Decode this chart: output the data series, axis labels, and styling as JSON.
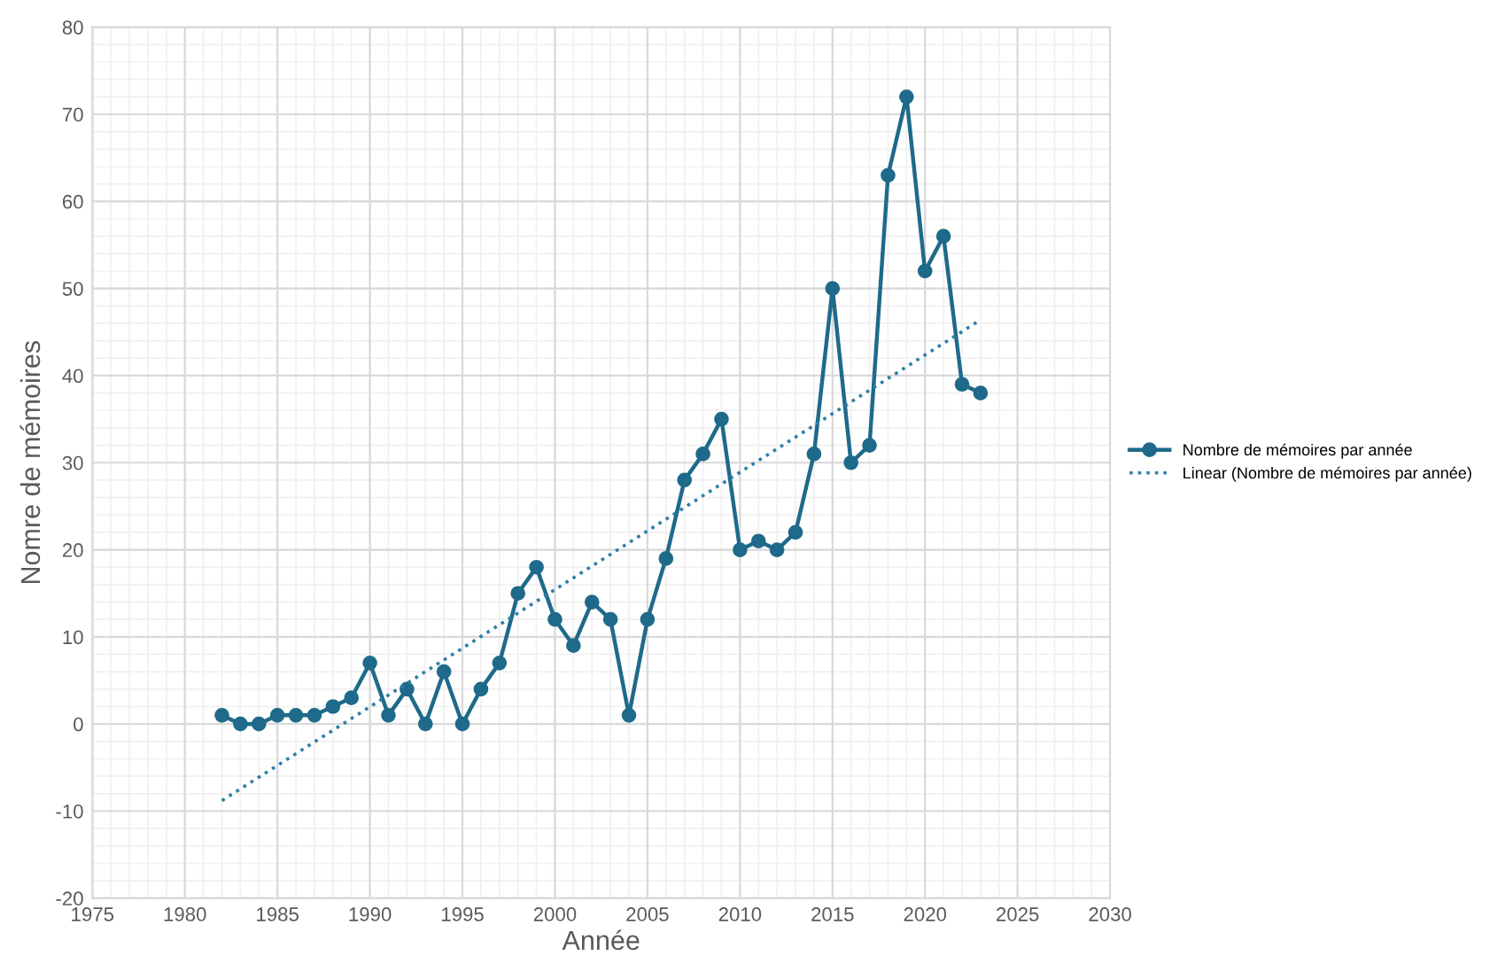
{
  "chart_data": {
    "type": "line",
    "xlabel": "Année",
    "ylabel": "Nomre de mémoires",
    "xlim": [
      1975,
      2030
    ],
    "xticks": [
      1975,
      1980,
      1985,
      1990,
      1995,
      2000,
      2005,
      2010,
      2015,
      2020,
      2025,
      2030
    ],
    "ylim": [
      -20,
      80
    ],
    "yticks": [
      -20,
      -10,
      0,
      10,
      20,
      30,
      40,
      50,
      60,
      70,
      80
    ],
    "grid": true,
    "legend": "right",
    "series": [
      {
        "name": "Nombre de mémoires par année",
        "color": "#1f6a8a",
        "marker": "circle",
        "line_style": "solid",
        "x": [
          1982,
          1983,
          1984,
          1985,
          1986,
          1987,
          1988,
          1989,
          1990,
          1991,
          1992,
          1993,
          1994,
          1995,
          1996,
          1997,
          1998,
          1999,
          2000,
          2001,
          2002,
          2003,
          2004,
          2005,
          2006,
          2007,
          2008,
          2009,
          2010,
          2011,
          2012,
          2013,
          2014,
          2015,
          2016,
          2017,
          2018,
          2019,
          2020,
          2021,
          2022,
          2023
        ],
        "values": [
          1,
          0,
          0,
          1,
          1,
          1,
          2,
          3,
          7,
          1,
          4,
          0,
          6,
          0,
          4,
          7,
          15,
          18,
          12,
          9,
          14,
          12,
          1,
          12,
          19,
          28,
          31,
          35,
          20,
          21,
          20,
          22,
          31,
          50,
          30,
          32,
          63,
          72,
          52,
          56,
          39,
          38
        ]
      },
      {
        "name": "Linear (Nombre de mémoires par année)",
        "color": "#2e7fa8",
        "marker": "none",
        "line_style": "dotted",
        "x": [
          1982,
          2023
        ],
        "values": [
          -8.8,
          46.4
        ]
      }
    ]
  }
}
